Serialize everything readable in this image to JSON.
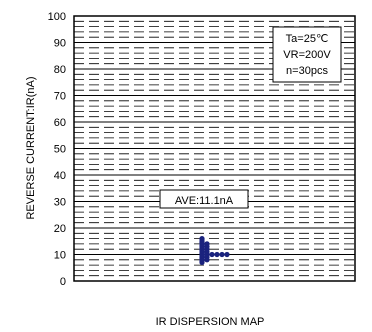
{
  "chart_data": {
    "type": "scatter",
    "title": "IR DISPERSION MAP",
    "ylabel": "REVERSE CURRENT:IR(nA)",
    "xlabel": "",
    "ylim": [
      0,
      100
    ],
    "yticks": [
      0,
      10,
      20,
      30,
      40,
      50,
      60,
      70,
      80,
      90,
      100
    ],
    "grid": "dashed horizontal",
    "conditions": [
      "Ta=25℃",
      "VR=200V",
      "n=30pcs"
    ],
    "annotation": "AVE:11.1nA",
    "average": 11.1,
    "sample_count": 30,
    "values": [
      7.0,
      7.5,
      8.0,
      8.5,
      9.0,
      9.5,
      10.0,
      10.5,
      11.0,
      11.5,
      12.0,
      12.5,
      13.0,
      13.5,
      14.0,
      14.5,
      15.0,
      15.5,
      16.0,
      8.0,
      9.0,
      10.0,
      11.0,
      12.0,
      13.0,
      14.0,
      10.0,
      10.0,
      10.0,
      10.0
    ],
    "colors": {
      "points": "#1a237e",
      "grid": "#000000"
    }
  }
}
